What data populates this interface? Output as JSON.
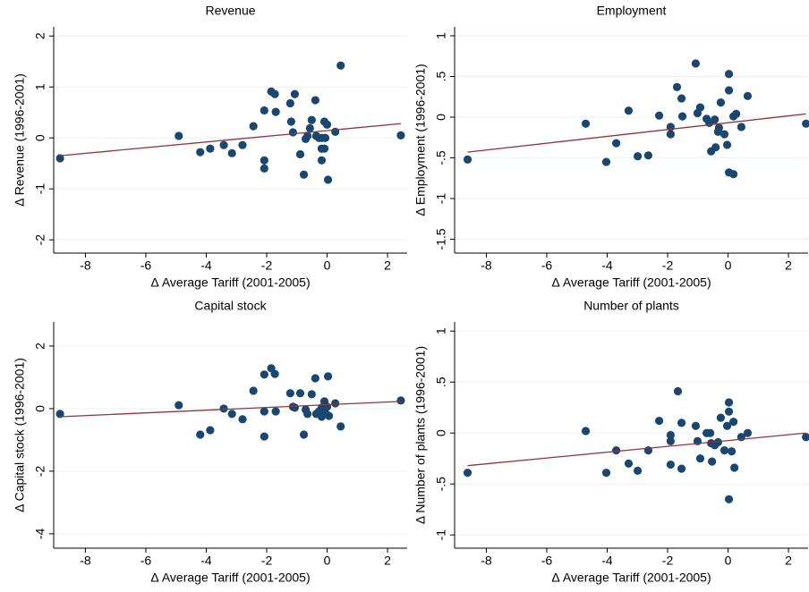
{
  "chart_data": [
    {
      "type": "scatter",
      "title": "Revenue",
      "xlabel": "Δ Average Tariff (2001-2005)",
      "ylabel": "Δ Revenue (1996-2001)",
      "x": [
        -8.84,
        -4.91,
        -4.2,
        -3.87,
        -3.42,
        -3.15,
        -2.8,
        -2.44,
        -2.08,
        -2.08,
        -2.08,
        -1.85,
        -1.73,
        -1.7,
        -1.22,
        -1.19,
        -1.07,
        -1.13,
        -0.89,
        -0.77,
        -0.71,
        -0.65,
        -0.57,
        -0.51,
        -0.39,
        -0.36,
        -0.27,
        -0.18,
        -0.18,
        -0.18,
        -0.09,
        0.0,
        -0.06,
        -0.09,
        0.03,
        0.27,
        0.45,
        2.44
      ],
      "y": [
        -0.4,
        0.04,
        -0.28,
        -0.21,
        -0.14,
        -0.3,
        -0.14,
        0.23,
        0.54,
        -0.44,
        -0.6,
        0.91,
        0.86,
        0.51,
        0.68,
        0.32,
        0.86,
        0.11,
        -0.32,
        -0.72,
        -0.02,
        0.04,
        0.19,
        0.35,
        0.74,
        0.04,
        0.0,
        0.0,
        -0.21,
        -0.44,
        0.32,
        0.26,
        0.0,
        -0.21,
        -0.82,
        0.12,
        1.42,
        0.05
      ],
      "color": "#1a476f",
      "fit": {
        "x": [
          -8.84,
          2.44
        ],
        "y": [
          -0.35,
          0.28
        ],
        "color": "#90353b"
      },
      "xlim": [
        -9.05,
        2.65
      ],
      "ylim": [
        -2.26,
        2.18
      ],
      "xticks": [
        -8,
        -6,
        -4,
        -2,
        0,
        2
      ],
      "yticks": [
        -2,
        -1,
        0,
        1,
        2
      ],
      "grid": true
    },
    {
      "type": "scatter",
      "title": "Employment",
      "xlabel": "Δ Average Tariff (2001-2005)",
      "ylabel": "Δ Employment (1996-2001)",
      "x": [
        -8.62,
        -4.71,
        -4.03,
        -3.7,
        -3.29,
        -2.99,
        -2.64,
        -2.28,
        -1.9,
        -1.9,
        -1.69,
        -1.54,
        -1.51,
        -1.07,
        -1.01,
        -0.92,
        -0.71,
        -0.62,
        -0.56,
        -0.44,
        -0.41,
        -0.33,
        -0.3,
        -0.24,
        -0.12,
        -0.03,
        0.03,
        0.03,
        0.03,
        0.18,
        0.18,
        0.27,
        0.44,
        0.65,
        2.58
      ],
      "y": [
        -0.52,
        -0.08,
        -0.55,
        -0.32,
        0.08,
        -0.48,
        -0.47,
        0.02,
        -0.12,
        -0.21,
        0.37,
        0.23,
        0.01,
        0.66,
        0.05,
        0.12,
        -0.02,
        -0.07,
        -0.42,
        -0.03,
        -0.37,
        -0.18,
        -0.13,
        0.18,
        -0.21,
        -0.34,
        0.33,
        0.53,
        -0.68,
        0.01,
        -0.7,
        0.04,
        -0.12,
        0.26,
        -0.08
      ],
      "color": "#1a476f",
      "fit": {
        "x": [
          -8.62,
          2.58
        ],
        "y": [
          -0.43,
          0.04
        ],
        "color": "#90353b"
      },
      "xlim": [
        -9.05,
        2.65
      ],
      "ylim": [
        -1.67,
        1.11
      ],
      "xticks": [
        -8,
        -6,
        -4,
        -2,
        0,
        2
      ],
      "yticks": [
        -1.5,
        -1,
        {
          "value": -0.5,
          "label": "-.5"
        },
        0,
        {
          "value": 0.5,
          "label": ".5"
        },
        1
      ],
      "grid": true
    },
    {
      "type": "scatter",
      "title": "Capital stock",
      "xlabel": "Δ Average Tariff (2001-2005)",
      "ylabel": "Δ Capital stock (1996-2001)",
      "x": [
        -8.84,
        -4.91,
        -4.2,
        -3.87,
        -3.42,
        -3.15,
        -2.8,
        -2.44,
        -2.08,
        -2.08,
        -2.08,
        -1.85,
        -1.73,
        -1.7,
        -1.22,
        -1.13,
        -1.07,
        -0.89,
        -0.77,
        -0.71,
        -0.65,
        -0.51,
        -0.39,
        -0.36,
        -0.27,
        -0.18,
        -0.18,
        -0.09,
        -0.06,
        0.0,
        0.03,
        0.06,
        0.27,
        0.45,
        2.44
      ],
      "y": [
        -0.17,
        0.11,
        -0.83,
        -0.69,
        0.0,
        -0.17,
        -0.34,
        0.57,
        1.09,
        -0.09,
        -0.89,
        1.29,
        1.11,
        -0.09,
        0.49,
        0.06,
        0.03,
        0.49,
        -0.83,
        -0.03,
        -0.17,
        0.46,
        0.97,
        -0.17,
        -0.09,
        0.03,
        -0.26,
        0.23,
        -0.14,
        0.06,
        1.03,
        -0.23,
        0.17,
        -0.57,
        0.26
      ],
      "color": "#1a476f",
      "fit": {
        "x": [
          -8.84,
          2.44
        ],
        "y": [
          -0.26,
          0.23
        ],
        "color": "#90353b"
      },
      "xlim": [
        -9.05,
        2.65
      ],
      "ylim": [
        -4.46,
        2.77
      ],
      "xticks": [
        -8,
        -6,
        -4,
        -2,
        0,
        2
      ],
      "yticks": [
        -4,
        -2,
        0,
        2
      ],
      "grid": true
    },
    {
      "type": "scatter",
      "title": "Number of plants",
      "xlabel": "Δ Average Tariff (2001-2005)",
      "ylabel": "Δ Number of plants (1996-2001)",
      "x": [
        -8.62,
        -4.71,
        -4.03,
        -3.7,
        -3.29,
        -2.99,
        -2.64,
        -2.28,
        -1.9,
        -1.9,
        -1.9,
        -1.66,
        -1.54,
        -1.54,
        -1.07,
        -1.01,
        -0.92,
        -0.71,
        -0.59,
        -0.56,
        -0.53,
        -0.44,
        -0.33,
        -0.24,
        -0.12,
        -0.03,
        0.03,
        0.03,
        0.03,
        0.12,
        0.18,
        0.21,
        0.44,
        0.65,
        2.58
      ],
      "y": [
        -0.39,
        0.02,
        -0.39,
        -0.17,
        -0.3,
        -0.37,
        -0.17,
        0.12,
        -0.02,
        -0.31,
        -0.08,
        0.41,
        0.1,
        -0.35,
        0.07,
        -0.08,
        -0.25,
        0.0,
        0.0,
        -0.1,
        -0.28,
        -0.12,
        -0.09,
        0.15,
        -0.17,
        0.07,
        0.3,
        0.21,
        -0.65,
        -0.18,
        0.11,
        -0.34,
        -0.04,
        0.0,
        -0.04
      ],
      "color": "#1a476f",
      "fit": {
        "x": [
          -8.62,
          2.58
        ],
        "y": [
          -0.32,
          0.0
        ],
        "color": "#90353b"
      },
      "xlim": [
        -9.05,
        2.65
      ],
      "ylim": [
        -1.13,
        1.09
      ],
      "xticks": [
        -8,
        -6,
        -4,
        -2,
        0,
        2
      ],
      "yticks": [
        -1,
        {
          "value": -0.5,
          "label": "-.5"
        },
        0,
        {
          "value": 0.5,
          "label": ".5"
        },
        1
      ],
      "grid": true
    }
  ]
}
